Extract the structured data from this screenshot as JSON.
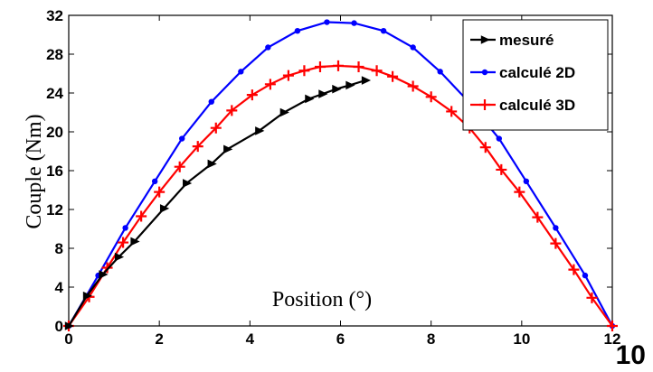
{
  "chart_data": {
    "type": "line",
    "xlabel": "Position (°)",
    "ylabel": "Couple  (Nm)",
    "xlim": [
      0,
      12
    ],
    "ylim": [
      0,
      32
    ],
    "xticks": [
      "0",
      "2",
      "4",
      "6",
      "8",
      "10",
      "12"
    ],
    "yticks": [
      "0",
      "4",
      "8",
      "12",
      "16",
      "20",
      "24",
      "28",
      "32"
    ],
    "grid": false,
    "legend_position": "top-right",
    "corner_text": "10",
    "series": [
      {
        "name": "mesuré",
        "color": "#000000",
        "marker": "triangle-right",
        "x": [
          0,
          0.4,
          0.75,
          1.1,
          1.45,
          2.1,
          2.6,
          3.15,
          3.5,
          4.2,
          4.75,
          5.3,
          5.6,
          5.9,
          6.2,
          6.55
        ],
        "y": [
          0,
          3.1,
          5.3,
          7.1,
          8.7,
          12.1,
          14.7,
          16.7,
          18.2,
          20.1,
          22.0,
          23.4,
          23.9,
          24.4,
          24.8,
          25.3
        ]
      },
      {
        "name": "calculé 2D",
        "color": "#0000ff",
        "marker": "dot",
        "x": [
          0,
          0.65,
          1.25,
          1.9,
          2.5,
          3.15,
          3.8,
          4.4,
          5.05,
          5.7,
          6.3,
          6.95,
          7.6,
          8.2,
          8.85,
          9.5,
          10.1,
          10.75,
          11.4,
          12.0
        ],
        "y": [
          0,
          5.2,
          10.1,
          14.9,
          19.3,
          23.1,
          26.2,
          28.7,
          30.4,
          31.3,
          31.2,
          30.4,
          28.7,
          26.2,
          23.0,
          19.3,
          14.9,
          10.1,
          5.2,
          0
        ]
      },
      {
        "name": "calculé 3D",
        "color": "#ff0000",
        "marker": "plus",
        "x": [
          0,
          0.45,
          0.85,
          1.2,
          1.6,
          2.0,
          2.45,
          2.85,
          3.25,
          3.6,
          4.05,
          4.45,
          4.85,
          5.2,
          5.55,
          5.95,
          6.4,
          6.8,
          7.15,
          7.6,
          8.0,
          8.45,
          8.85,
          9.2,
          9.55,
          9.95,
          10.35,
          10.75,
          11.15,
          11.55,
          12.0
        ],
        "y": [
          0,
          3.0,
          6.0,
          8.6,
          11.3,
          13.8,
          16.4,
          18.5,
          20.4,
          22.2,
          23.8,
          24.9,
          25.8,
          26.3,
          26.7,
          26.8,
          26.7,
          26.3,
          25.7,
          24.7,
          23.6,
          22.1,
          20.4,
          18.4,
          16.1,
          13.8,
          11.2,
          8.5,
          5.8,
          2.9,
          0
        ]
      }
    ]
  }
}
